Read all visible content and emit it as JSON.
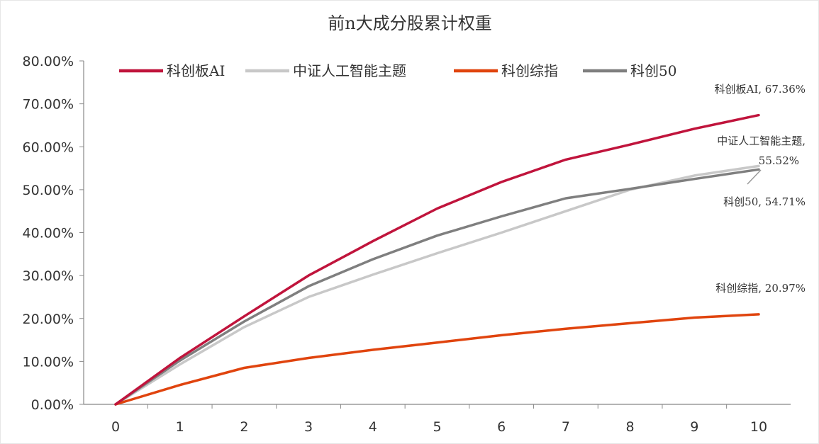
{
  "chart_data": {
    "type": "line",
    "title": "前n大成分股累计权重",
    "xlabel": "",
    "ylabel": "",
    "x": [
      0,
      1,
      2,
      3,
      4,
      5,
      6,
      7,
      8,
      9,
      10
    ],
    "ylim": [
      0,
      80
    ],
    "yticks": [
      0,
      10,
      20,
      30,
      40,
      50,
      60,
      70,
      80
    ],
    "ytick_labels": [
      "0.00%",
      "10.00%",
      "20.00%",
      "30.00%",
      "40.00%",
      "50.00%",
      "60.00%",
      "70.00%",
      "80.00%"
    ],
    "xtick_labels": [
      "0",
      "1",
      "2",
      "3",
      "4",
      "5",
      "6",
      "7",
      "8",
      "9",
      "10"
    ],
    "grid": false,
    "legend_position": "top",
    "series": [
      {
        "name": "科创板AI",
        "color": "#C0143C",
        "values": [
          0,
          10.8,
          20.5,
          30.0,
          38.0,
          45.6,
          51.8,
          57.0,
          60.5,
          64.2,
          67.36
        ]
      },
      {
        "name": "中证人工智能主题",
        "color": "#C8C8C8",
        "values": [
          0,
          9.3,
          18.0,
          25.0,
          30.2,
          35.2,
          40.0,
          45.0,
          50.0,
          53.3,
          55.52
        ]
      },
      {
        "name": "科创综指",
        "color": "#E0440E",
        "values": [
          0,
          4.5,
          8.5,
          10.8,
          12.7,
          14.4,
          16.1,
          17.6,
          18.9,
          20.2,
          20.97
        ]
      },
      {
        "name": "科创50",
        "color": "#7F7F7F",
        "values": [
          0,
          10.2,
          19.3,
          27.5,
          33.8,
          39.3,
          43.8,
          48.0,
          50.2,
          52.5,
          54.71
        ]
      }
    ],
    "annotations": [
      {
        "series": "科创板AI",
        "lines": [
          "科创板AI, 67.36%"
        ]
      },
      {
        "series": "中证人工智能主题",
        "lines": [
          "中证人工智能主题,",
          "55.52%"
        ]
      },
      {
        "series": "科创50",
        "lines": [
          "科创50, 54.71%"
        ]
      },
      {
        "series": "科创综指",
        "lines": [
          "科创综指, 20.97%"
        ]
      }
    ]
  }
}
